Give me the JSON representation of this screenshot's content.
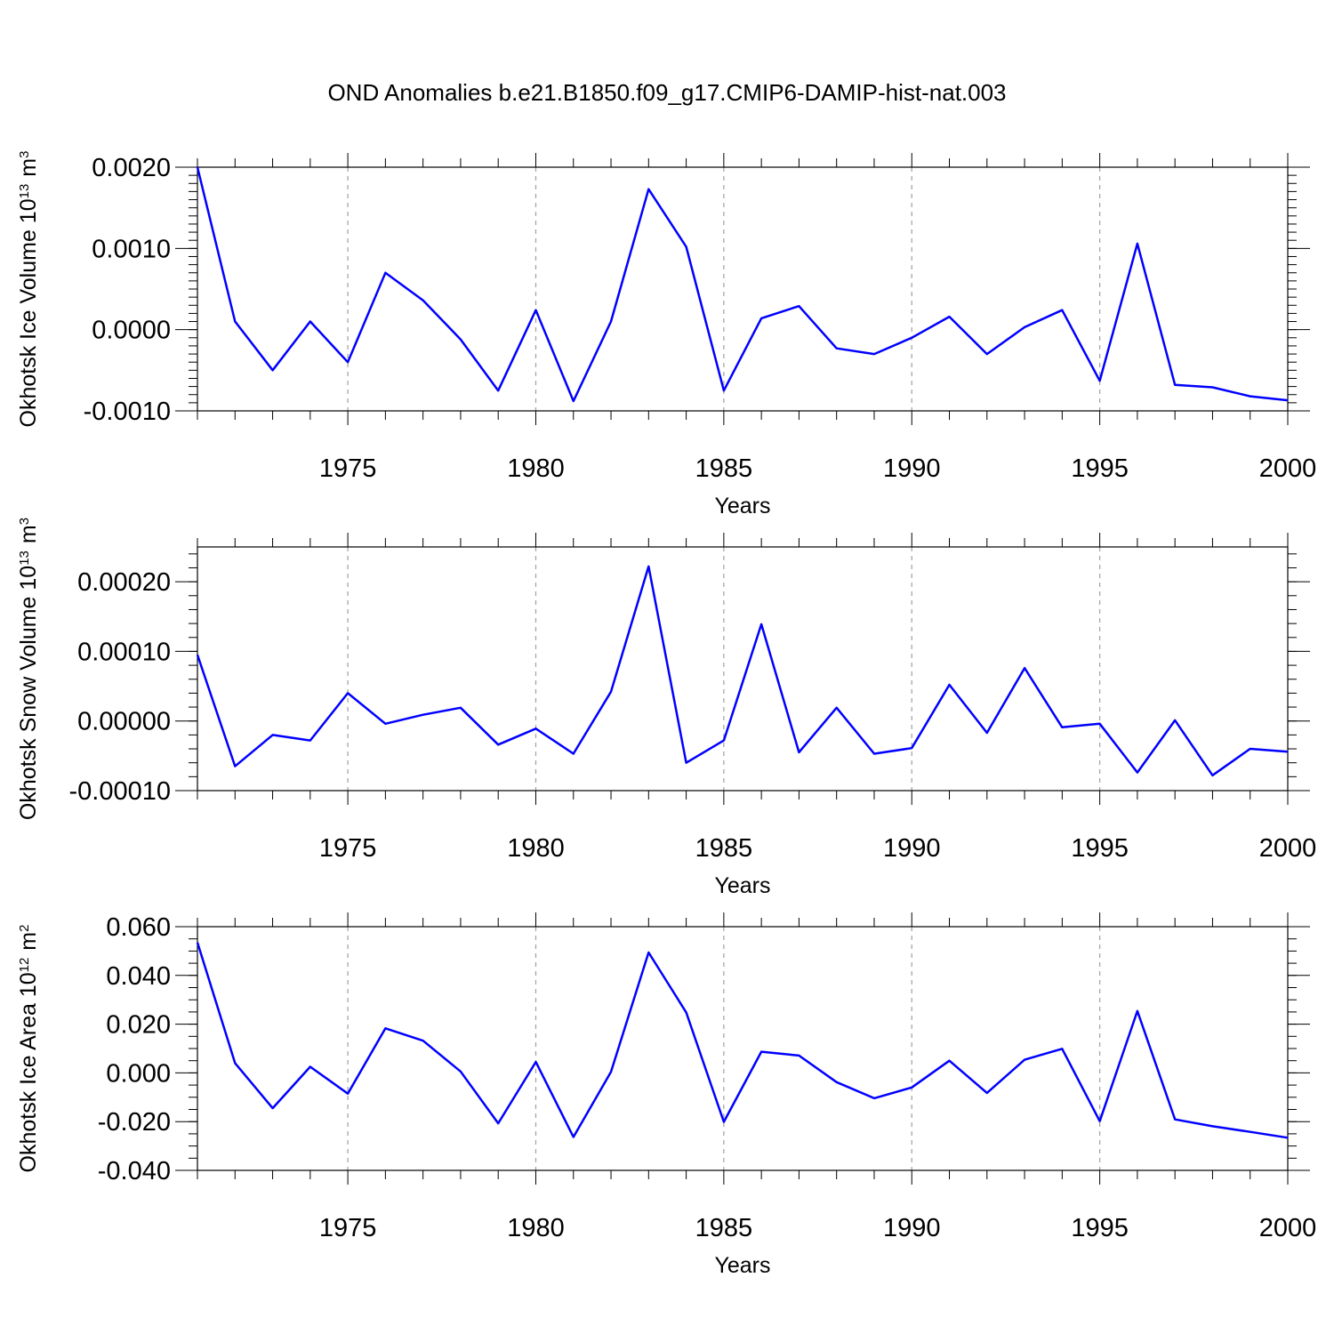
{
  "title": "OND Anomalies b.e21.B1850.f09_g17.CMIP6-DAMIP-hist-nat.003",
  "series_color": "#0000ff",
  "grid_color": "#a0a0a0",
  "chart_data": [
    {
      "type": "line",
      "ylabel_text": "Okhotsk Ice Volume 10",
      "ylabel_exp": "13",
      "ylabel_unit": "m",
      "ylabel_unit_exp": "3",
      "xlabel": "Years",
      "x_ticks": [
        "1975",
        "1980",
        "1985",
        "1990",
        "1995",
        "2000"
      ],
      "y_ticks": [
        "0.0020",
        "0.0010",
        "0.0000",
        "-0.0010"
      ],
      "xlim": [
        1971,
        2000
      ],
      "ylim": [
        -0.001,
        0.002
      ],
      "grid": "vertical dashed at major x ticks",
      "x": [
        1971,
        1972,
        1973,
        1974,
        1975,
        1976,
        1977,
        1978,
        1979,
        1980,
        1981,
        1982,
        1983,
        1984,
        1985,
        1986,
        1987,
        1988,
        1989,
        1990,
        1991,
        1992,
        1993,
        1994,
        1995,
        1996,
        1997,
        1998,
        1999,
        2000
      ],
      "values": [
        0.002,
        0.0001,
        -0.0005,
        0.0001,
        -0.0004,
        0.0007,
        0.00036,
        -0.00012,
        -0.00075,
        0.00024,
        -0.00088,
        0.0001,
        0.00173,
        0.00102,
        -0.00075,
        0.00014,
        0.00029,
        -0.00023,
        -0.0003,
        -0.0001,
        0.00016,
        -0.0003,
        3e-05,
        0.00024,
        -0.00063,
        0.00106,
        -0.00068,
        -0.00071,
        -0.00082,
        -0.00087
      ]
    },
    {
      "type": "line",
      "ylabel_text": "Okhotsk Snow Volume 10",
      "ylabel_exp": "13",
      "ylabel_unit": "m",
      "ylabel_unit_exp": "3",
      "xlabel": "Years",
      "x_ticks": [
        "1975",
        "1980",
        "1985",
        "1990",
        "1995",
        "2000"
      ],
      "y_ticks": [
        "0.00020",
        "0.00010",
        "0.00000",
        "-0.00010"
      ],
      "xlim": [
        1971,
        2000
      ],
      "ylim": [
        -0.0001,
        0.00025
      ],
      "grid": "vertical dashed at major x ticks",
      "x": [
        1971,
        1972,
        1973,
        1974,
        1975,
        1976,
        1977,
        1978,
        1979,
        1980,
        1981,
        1982,
        1983,
        1984,
        1985,
        1986,
        1987,
        1988,
        1989,
        1990,
        1991,
        1992,
        1993,
        1994,
        1995,
        1996,
        1997,
        1998,
        1999,
        2000
      ],
      "values": [
        9.5e-05,
        -6.5e-05,
        -2e-05,
        -2.8e-05,
        4e-05,
        -4e-06,
        9e-06,
        1.9e-05,
        -3.4e-05,
        -1.1e-05,
        -4.7e-05,
        4.2e-05,
        0.000222,
        -6e-05,
        -2.8e-05,
        0.000139,
        -4.5e-05,
        1.9e-05,
        -4.7e-05,
        -3.9e-05,
        5.2e-05,
        -1.7e-05,
        7.6e-05,
        -9e-06,
        -4e-06,
        -7.4e-05,
        1e-06,
        -7.8e-05,
        -4e-05,
        -4.4e-05
      ]
    },
    {
      "type": "line",
      "ylabel_text": "Okhotsk Ice Area 10",
      "ylabel_exp": "12",
      "ylabel_unit": "m",
      "ylabel_unit_exp": "2",
      "xlabel": "Years",
      "x_ticks": [
        "1975",
        "1980",
        "1985",
        "1990",
        "1995",
        "2000"
      ],
      "y_ticks": [
        "0.060",
        "0.040",
        "0.020",
        "0.000",
        "-0.020",
        "-0.040"
      ],
      "xlim": [
        1971,
        2000
      ],
      "ylim": [
        -0.04,
        0.06
      ],
      "grid": "vertical dashed at major x ticks",
      "x": [
        1971,
        1972,
        1973,
        1974,
        1975,
        1976,
        1977,
        1978,
        1979,
        1980,
        1981,
        1982,
        1983,
        1984,
        1985,
        1986,
        1987,
        1988,
        1989,
        1990,
        1991,
        1992,
        1993,
        1994,
        1995,
        1996,
        1997,
        1998,
        1999,
        2000
      ],
      "values": [
        0.0535,
        0.004,
        -0.0145,
        0.0025,
        -0.0085,
        0.0183,
        0.0132,
        0.0006,
        -0.0207,
        0.0045,
        -0.0263,
        0.0004,
        0.0494,
        0.0248,
        -0.0201,
        0.0087,
        0.0071,
        -0.0038,
        -0.0104,
        -0.006,
        0.005,
        -0.0082,
        0.0054,
        0.0099,
        -0.0198,
        0.0254,
        -0.0191,
        -0.0219,
        -0.0242,
        -0.0266
      ]
    }
  ]
}
